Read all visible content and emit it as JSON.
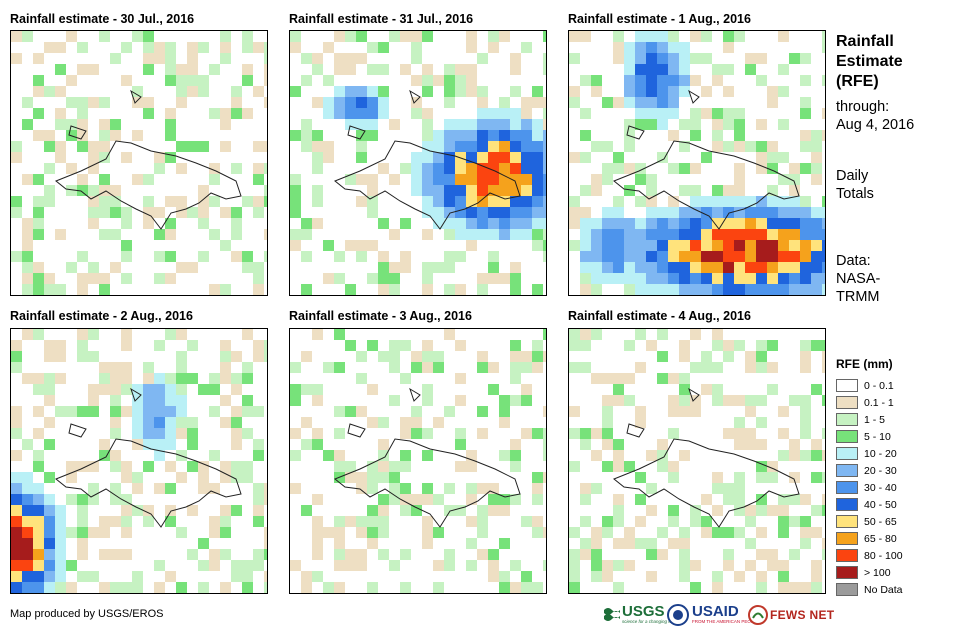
{
  "panels": [
    {
      "title": "Rainfall estimate - 30 Jul., 2016"
    },
    {
      "title": "Rainfall estimate - 31 Jul., 2016"
    },
    {
      "title": "Rainfall estimate - 1 Aug., 2016"
    },
    {
      "title": "Rainfall estimate - 2 Aug., 2016"
    },
    {
      "title": "Rainfall estimate - 3 Aug., 2016"
    },
    {
      "title": "Rainfall estimate - 4 Aug., 2016"
    }
  ],
  "sidebar": {
    "title_lines": [
      "Rainfall",
      "Estimate",
      "(RFE)"
    ],
    "through_label": "through:",
    "through_date": "Aug 4, 2016",
    "daily_lines": [
      "Daily",
      "Totals"
    ],
    "data_lines": [
      "Data:",
      "NASA-",
      "TRMM"
    ]
  },
  "legend": {
    "title": "RFE (mm)",
    "items": [
      {
        "label": "0 - 0.1",
        "color": "#ffffff"
      },
      {
        "label": "0.1 - 1",
        "color": "#eedfc3"
      },
      {
        "label": "1 - 5",
        "color": "#c6f2c2"
      },
      {
        "label": "5 - 10",
        "color": "#77e27a"
      },
      {
        "label": "10 - 20",
        "color": "#b9f0f6"
      },
      {
        "label": "20 - 30",
        "color": "#7fb7f2"
      },
      {
        "label": "30 - 40",
        "color": "#4d94ec"
      },
      {
        "label": "40 - 50",
        "color": "#1f64dd"
      },
      {
        "label": "50 - 65",
        "color": "#ffe37c"
      },
      {
        "label": "65 - 80",
        "color": "#f5a21c"
      },
      {
        "label": "80 - 100",
        "color": "#fb4410"
      },
      {
        "label": "> 100",
        "color": "#a61c1c"
      },
      {
        "label": "No Data",
        "color": "#9b9b9b"
      }
    ]
  },
  "footer": {
    "credit": "Map produced by USGS/EROS"
  },
  "logos": {
    "usgs": "USGS",
    "usgs_tagline": "science for a changing world",
    "usaid": "USAID",
    "usaid_tagline": "FROM THE AMERICAN PEOPLE",
    "fewsnet": "FEWS NET"
  }
}
